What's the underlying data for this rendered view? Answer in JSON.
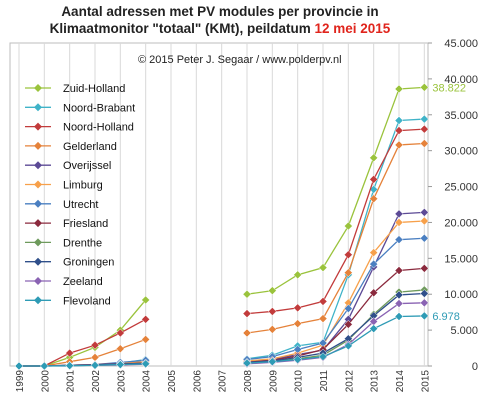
{
  "chart_data": {
    "type": "line",
    "title_line1": "Aantal adressen met PV modules per provincie in",
    "title_line2": "Klimaatmonitor \"totaal\" (KMt), peildatum",
    "title_date": "12 mei 2015",
    "copyright": "© 2015 Peter J. Segaar / www.polderpv.nl",
    "xlabel": "",
    "ylabel": "",
    "x": [
      "1999",
      "2000",
      "2001",
      "2002",
      "2003",
      "2004",
      "2005",
      "2006",
      "2007",
      "2008",
      "2009",
      "2010",
      "2011",
      "2012",
      "2013",
      "2014",
      "2015"
    ],
    "ylim": [
      0,
      45000
    ],
    "yticks": [
      "0",
      "5.000",
      "10.000",
      "15.000",
      "20.000",
      "25.000",
      "30.000",
      "35.000",
      "40.000",
      "45.000"
    ],
    "grid": "vertical",
    "legend": "top-left",
    "annotations": [
      {
        "series": "Zuid-Holland",
        "text": "38.822",
        "color": "#9ac33c"
      },
      {
        "series": "Flevoland",
        "text": "6.978",
        "color": "#2e9bb5"
      }
    ],
    "series": [
      {
        "name": "Zuid-Holland",
        "color": "#9ac33c",
        "values": [
          0,
          0,
          1200,
          2600,
          5000,
          9200,
          null,
          null,
          null,
          10000,
          10500,
          12700,
          13700,
          19500,
          29000,
          38600,
          38822
        ]
      },
      {
        "name": "Noord-Brabant",
        "color": "#3fb3c8",
        "values": [
          0,
          0,
          0,
          100,
          400,
          900,
          null,
          null,
          null,
          1000,
          1500,
          2800,
          3300,
          12700,
          24600,
          34200,
          34400
        ]
      },
      {
        "name": "Noord-Holland",
        "color": "#c23b3b",
        "values": [
          0,
          0,
          1800,
          2900,
          4600,
          6500,
          null,
          null,
          null,
          7300,
          7600,
          8100,
          9000,
          15500,
          26000,
          32800,
          33000
        ]
      },
      {
        "name": "Gelderland",
        "color": "#e5823a",
        "values": [
          0,
          0,
          600,
          1200,
          2400,
          3700,
          null,
          null,
          null,
          4600,
          5100,
          5900,
          6600,
          13000,
          23300,
          30800,
          31000
        ]
      },
      {
        "name": "Overijssel",
        "color": "#5c4a96",
        "values": [
          0,
          0,
          100,
          200,
          300,
          500,
          null,
          null,
          null,
          600,
          900,
          1600,
          2200,
          6500,
          13800,
          21200,
          21400
        ]
      },
      {
        "name": "Limburg",
        "color": "#f7a04a",
        "values": [
          0,
          0,
          100,
          200,
          400,
          600,
          null,
          null,
          null,
          700,
          1000,
          1800,
          2900,
          8800,
          15800,
          20000,
          20200
        ]
      },
      {
        "name": "Utrecht",
        "color": "#4a7fc1",
        "values": [
          0,
          0,
          100,
          200,
          500,
          800,
          null,
          null,
          null,
          900,
          1300,
          2300,
          3200,
          8000,
          14200,
          17600,
          17800
        ]
      },
      {
        "name": "Friesland",
        "color": "#8b2a3e",
        "values": [
          0,
          0,
          100,
          200,
          300,
          400,
          null,
          null,
          null,
          500,
          800,
          1400,
          2300,
          5800,
          10200,
          13300,
          13600
        ]
      },
      {
        "name": "Drenthe",
        "color": "#6e9a5c",
        "values": [
          0,
          0,
          50,
          100,
          200,
          300,
          null,
          null,
          null,
          400,
          600,
          1000,
          1500,
          3600,
          7200,
          10300,
          10600
        ]
      },
      {
        "name": "Groningen",
        "color": "#2f4f8a",
        "values": [
          0,
          0,
          80,
          150,
          250,
          400,
          null,
          null,
          null,
          500,
          700,
          1200,
          1800,
          3800,
          7000,
          9900,
          10100
        ]
      },
      {
        "name": "Zeeland",
        "color": "#8a63b3",
        "values": [
          0,
          0,
          50,
          100,
          150,
          250,
          null,
          null,
          null,
          300,
          500,
          800,
          1200,
          3000,
          6200,
          8700,
          8800
        ]
      },
      {
        "name": "Flevoland",
        "color": "#2e9bb5",
        "values": [
          0,
          0,
          50,
          100,
          200,
          300,
          null,
          null,
          null,
          400,
          600,
          900,
          1300,
          2800,
          5200,
          6900,
          6978
        ]
      }
    ]
  }
}
